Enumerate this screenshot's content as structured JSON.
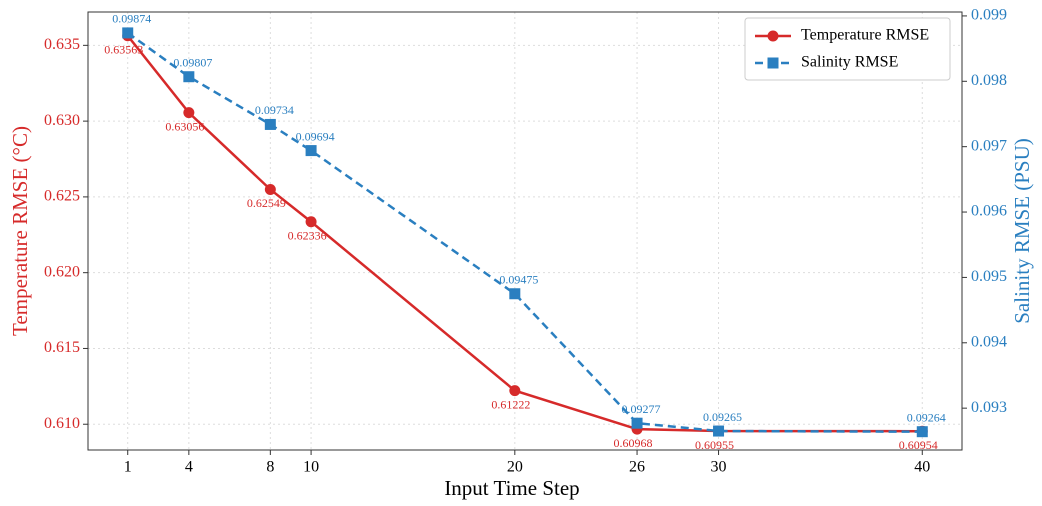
{
  "chart_data": {
    "type": "line",
    "xlabel": "Input Time Step",
    "ylabel": "Temperature RMSE (°C)",
    "y2label": "Salinity RMSE (PSU)",
    "x": [
      1,
      4,
      8,
      10,
      20,
      26,
      30,
      40
    ],
    "series": [
      {
        "name": "Temperature RMSE",
        "color": "#d62a2a",
        "linestyle": "solid",
        "marker": "circle",
        "values": [
          0.63563,
          0.63056,
          0.62549,
          0.62336,
          0.61222,
          0.60968,
          0.60955,
          0.60954
        ]
      },
      {
        "name": "Salinity RMSE",
        "color": "#2a7fc0",
        "linestyle": "dashed",
        "marker": "square",
        "axis": "y2",
        "values": [
          0.09874,
          0.09807,
          0.09734,
          0.09694,
          0.09475,
          0.09277,
          0.09265,
          0.09264
        ]
      }
    ],
    "xlim": [
      -0.95,
      41.95
    ],
    "xticks": [
      1,
      4,
      8,
      10,
      20,
      26,
      30,
      40
    ],
    "ylim": [
      0.6083,
      0.6372
    ],
    "yticks": [
      {
        "value": 0.61,
        "label": "0.610"
      },
      0.615,
      {
        "value": 0.62,
        "label": "0.620"
      },
      0.625,
      {
        "value": 0.63,
        "label": "0.630"
      },
      0.635
    ],
    "y2lim": [
      0.09236,
      0.09906
    ],
    "y2ticks": [
      0.093,
      0.094,
      0.095,
      0.096,
      0.097,
      0.098,
      0.099
    ],
    "grid": true,
    "legend": "upper right"
  }
}
